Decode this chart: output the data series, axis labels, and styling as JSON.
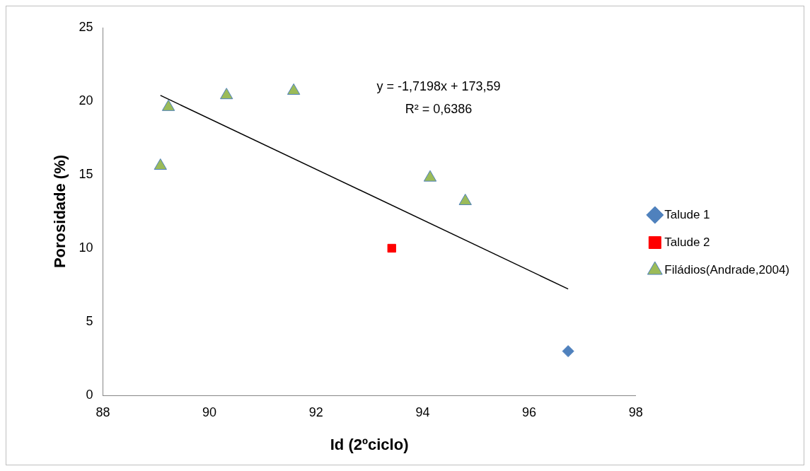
{
  "chart_data": {
    "type": "scatter",
    "xlabel": "Id (2ºciclo)",
    "ylabel": "Porosidade (%)",
    "xlim": [
      88,
      98
    ],
    "xticks": [
      88,
      90,
      92,
      94,
      96,
      98
    ],
    "ylim": [
      0,
      25
    ],
    "yticks": [
      0,
      5,
      10,
      15,
      20,
      25
    ],
    "grid": false,
    "legend": "right",
    "series": [
      {
        "name": "Talude 1",
        "color": "#4f81bd",
        "marker": "diamond",
        "x": [
          96.73
        ],
        "values": [
          3
        ]
      },
      {
        "name": "Talude 2",
        "color": "#ff0000",
        "marker": "square",
        "x": [
          93.42
        ],
        "values": [
          10
        ]
      },
      {
        "name": "Filádios(Andrade,2004)",
        "color": "#9bbb59",
        "marker": "triangle",
        "x": [
          89.08,
          89.23,
          90.32,
          91.58,
          94.14,
          94.8
        ],
        "values": [
          15.6,
          19.6,
          20.4,
          20.7,
          14.8,
          13.2
        ]
      },
      {
        "type": "line",
        "color": "#000000",
        "marker": "none",
        "x": [
          89.08,
          96.73
        ],
        "values": [
          20.39,
          7.23
        ]
      }
    ],
    "annotations": [
      "y = -1,7198x + 173,59",
      "R² = 0,6386"
    ]
  }
}
